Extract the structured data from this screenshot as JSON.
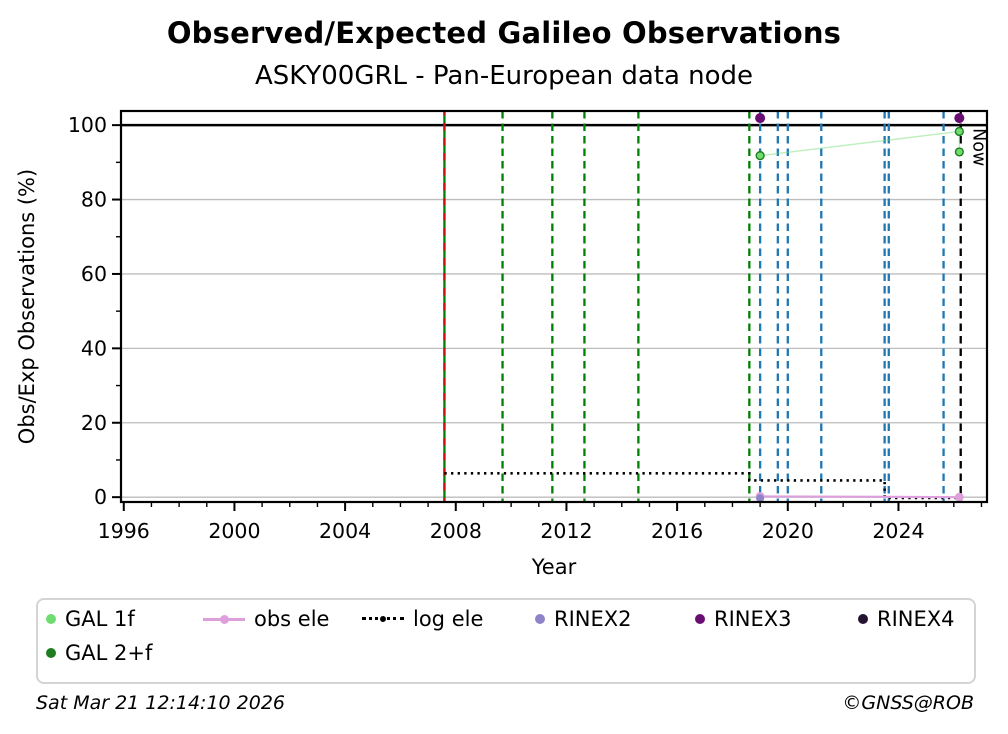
{
  "title": "Observed/Expected Galileo Observations",
  "subtitle": "ASKY00GRL - Pan-European data node",
  "footer": {
    "timestamp": "Sat Mar 21 12:14:10 2026",
    "copyright": "©GNSS@ROB"
  },
  "legend": {
    "items": [
      {
        "label": "GAL 1f",
        "marker": "dot",
        "color": "#6fdc6f"
      },
      {
        "label": "obs ele",
        "marker": "line-dot",
        "color": "#dda0dd"
      },
      {
        "label": "log ele",
        "marker": "dotted-line",
        "color": "#000000"
      },
      {
        "label": "RINEX2",
        "marker": "dot",
        "color": "#8f83c9"
      },
      {
        "label": "RINEX3",
        "marker": "dot",
        "color": "#6a0d73"
      },
      {
        "label": "RINEX4",
        "marker": "dot",
        "color": "#241430"
      },
      {
        "label": "GAL 2+f",
        "marker": "dot",
        "color": "#1e7d1e"
      }
    ]
  },
  "chart_data": {
    "type": "scatter",
    "title": "Observed/Expected Galileo Observations",
    "subtitle": "ASKY00GRL - Pan-European data node",
    "xlabel": "Year",
    "ylabel": "Obs/Exp Observations (%)",
    "xlim": [
      1995.9,
      2027.2
    ],
    "ylim": [
      -1.3,
      103.8
    ],
    "x_ticks": [
      1996,
      2000,
      2004,
      2008,
      2012,
      2016,
      2020,
      2024
    ],
    "x_minor_step": 1,
    "y_ticks": [
      0,
      20,
      40,
      60,
      80,
      100
    ],
    "y_minor_ticks": [
      10,
      30,
      50,
      70,
      90
    ],
    "grid": "horizontal",
    "gridline_color": "#bdbdbd",
    "reference_line_y": 100,
    "now": {
      "x": 2026.25,
      "label": "Now"
    },
    "event_lines": {
      "solid_green_red": {
        "x": 2007.59,
        "green": "#008000",
        "red": "#cc1111"
      },
      "green_dashed": [
        2009.69,
        2011.49,
        2012.65,
        2014.6,
        2018.61
      ],
      "green_color": "#008000",
      "blue_dashed": [
        2019.0,
        2019.64,
        2020.0,
        2021.21,
        2023.5,
        2023.65,
        2025.63
      ],
      "blue_color": "#1f77b4"
    },
    "series": [
      {
        "name": "log ele",
        "color": "#000000",
        "marker_size": 0,
        "line": "dotted",
        "points": [
          [
            2007.59,
            6.4
          ],
          [
            2018.61,
            6.4
          ],
          [
            2018.61,
            4.5
          ],
          [
            2023.5,
            4.5
          ],
          [
            2023.5,
            -0.2
          ],
          [
            2026.25,
            -0.2
          ]
        ]
      },
      {
        "name": "obs ele",
        "color": "#dda0dd",
        "marker_size": 4.4,
        "line": "solid",
        "points": [
          [
            2019.0,
            0.2
          ],
          [
            2026.2,
            0.0
          ]
        ]
      },
      {
        "name": "RINEX2",
        "color": "#8f83c9",
        "marker_size": 4.0,
        "line": "none",
        "points": [
          [
            2019.0,
            -0.3
          ]
        ]
      },
      {
        "name": "GAL 2+f",
        "color": "#1e7d1e",
        "marker_size": 4.6,
        "line": "none",
        "points": [
          [
            2019.0,
            91.8
          ],
          [
            2026.2,
            98.3
          ],
          [
            2026.2,
            92.8
          ]
        ]
      },
      {
        "name": "GAL 1f",
        "color": "#6fdc6f",
        "marker_size": 3.2,
        "line": "faint",
        "points": [
          [
            2019.0,
            91.8
          ],
          [
            2026.2,
            98.3
          ],
          [
            2026.2,
            92.8
          ]
        ]
      },
      {
        "name": "RINEX3",
        "color": "#6a0d73",
        "marker_size": 5.0,
        "line": "none",
        "points": [
          [
            2019.0,
            101.9
          ],
          [
            2026.2,
            101.9
          ]
        ]
      },
      {
        "name": "RINEX4",
        "color": "#241430",
        "marker_size": 4.5,
        "line": "none",
        "points": []
      }
    ]
  }
}
